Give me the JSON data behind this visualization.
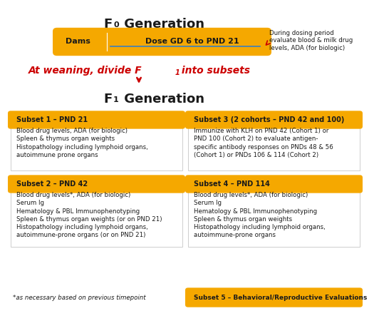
{
  "title_f0": "F",
  "title_f0_sub": "0",
  "title_f0_suffix": " Generation",
  "title_f1": "F",
  "title_f1_sub": "1",
  "title_f1_suffix": " Generation",
  "weaning_text": "At weaning, divide F",
  "weaning_sub": "1",
  "weaning_suffix": " into subsets",
  "dams_bar_color": "#F5A800",
  "dams_text": "Dams",
  "dose_text": "Dose GD 6 to PND 21",
  "side_note": "During dosing period\nevaluate blood & milk drug\nlevels, ADA (for biologic)",
  "subset_header_color": "#F5A800",
  "subset1_header": "Subset 1 – PND 21",
  "subset1_body": "Blood drug levels, ADA (for biologic)\nSpleen & thymus organ weights\nHistopathology including lymphoid organs,\nautoimmune prone organs",
  "subset2_header": "Subset 2 – PND 42",
  "subset2_body": "Blood drug levels*, ADA (for biologic)\nSerum Ig\nHematology & PBL Immunophenotyping\nSpleen & thymus organ weights (or on PND 21)\nHistopathology including lymphoid organs,\nautoimmune-prone organs (or on PND 21)",
  "subset3_header": "Subset 3 (2 cohorts – PND 42 and 100)",
  "subset3_body": "Immunize with KLH on PND 42 (Cohort 1) or\nPND 100 (Cohort 2) to evaluate antigen-\nspecific antibody responses on PNDs 48 & 56\n(Cohort 1) or PNDs 106 & 114 (Cohort 2)",
  "subset4_header": "Subset 4 – PND 114",
  "subset4_body": "Blood drug levels*, ADA (for biologic)\nSerum Ig\nHematology & PBL Immunophenotyping\nSpleen & thymus organ weights\nHistopathology including lymphoid organs,\nautoimmune-prone organs",
  "subset5_header": "Subset 5 – Behavioral/Reproductive Evaluations",
  "footnote": "*as necessary based on previous timepoint",
  "bg_color": "#ffffff",
  "arrow_color": "#CC0000",
  "weaning_color": "#CC0000",
  "text_color": "#1a1a1a",
  "border_color": "#BBBBBB"
}
